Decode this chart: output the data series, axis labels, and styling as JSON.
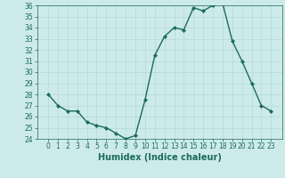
{
  "x": [
    0,
    1,
    2,
    3,
    4,
    5,
    6,
    7,
    8,
    9,
    10,
    11,
    12,
    13,
    14,
    15,
    16,
    17,
    18,
    19,
    20,
    21,
    22,
    23
  ],
  "y": [
    28,
    27,
    26.5,
    26.5,
    25.5,
    25.2,
    25.0,
    24.5,
    24.0,
    24.3,
    27.5,
    31.5,
    33.2,
    34.0,
    33.8,
    35.8,
    35.5,
    36.0,
    36.2,
    32.8,
    31.0,
    29.0,
    27.0,
    26.5
  ],
  "line_color": "#1a6b5a",
  "marker": "D",
  "markersize": 2.0,
  "linewidth": 1.0,
  "xlabel": "Humidex (Indice chaleur)",
  "xlabel_fontsize": 7,
  "ylim": [
    24,
    36
  ],
  "yticks": [
    24,
    25,
    26,
    27,
    28,
    29,
    30,
    31,
    32,
    33,
    34,
    35,
    36
  ],
  "xticks": [
    0,
    1,
    2,
    3,
    4,
    5,
    6,
    7,
    8,
    9,
    10,
    11,
    12,
    13,
    14,
    15,
    16,
    17,
    18,
    19,
    20,
    21,
    22,
    23
  ],
  "background_color": "#cdeaea",
  "grid_color": "#aed4d4",
  "tick_color": "#1a6b5a",
  "tick_fontsize": 5.5,
  "figure_bg": "#cdeaea"
}
